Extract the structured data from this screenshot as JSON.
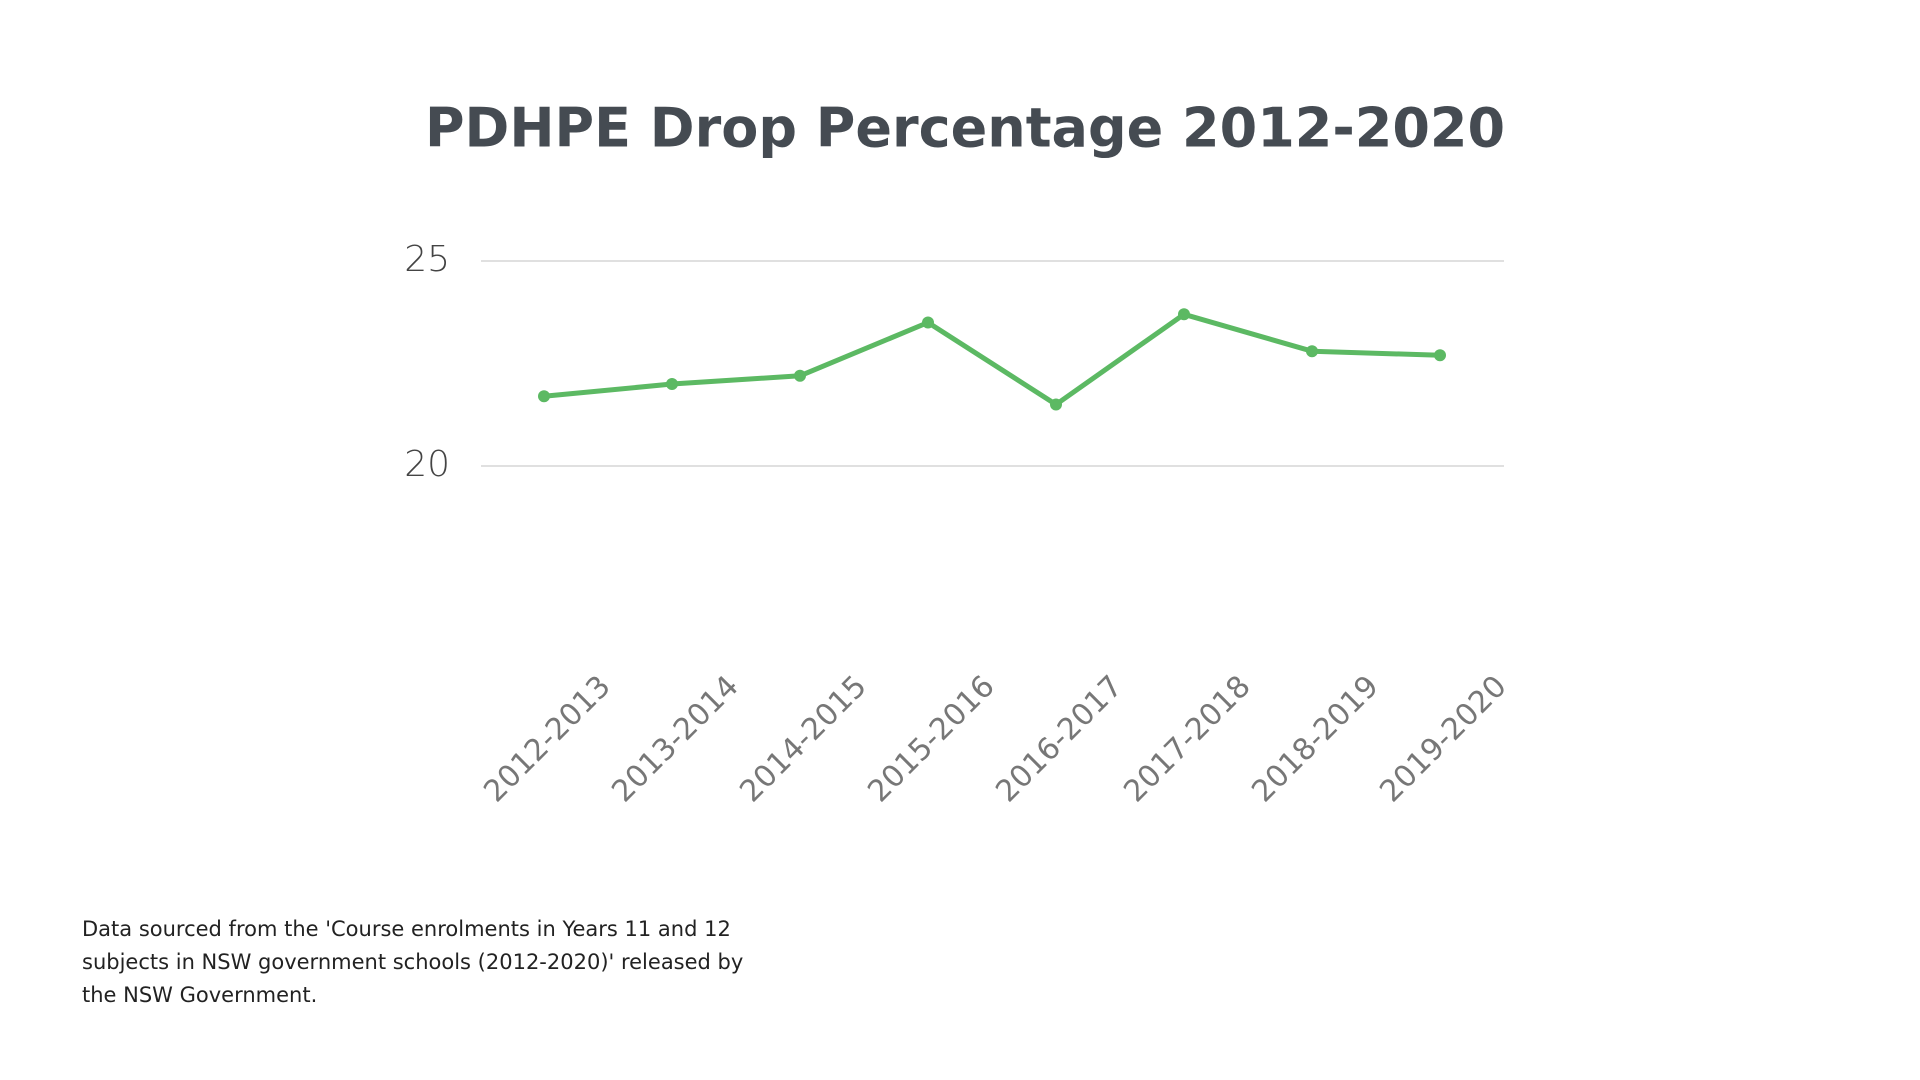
{
  "chart_data": {
    "type": "line",
    "title": "PDHPE Drop Percentage 2012-2020",
    "categories": [
      "2012-2013",
      "2013-2014",
      "2014-2015",
      "2015-2016",
      "2016-2017",
      "2017-2018",
      "2018-2019",
      "2019-2020"
    ],
    "values": [
      21.7,
      22.0,
      22.2,
      23.5,
      21.5,
      23.7,
      22.8,
      22.7
    ],
    "color": "#5cb963",
    "ylim": [
      20,
      25
    ],
    "yticks": [
      20,
      25
    ],
    "grid": true
  },
  "footnote": [
    "Data sourced from the 'Course enrolments in Years 11 and 12",
    "subjects in NSW government schools (2012-2020)' released by",
    "the NSW Government."
  ]
}
